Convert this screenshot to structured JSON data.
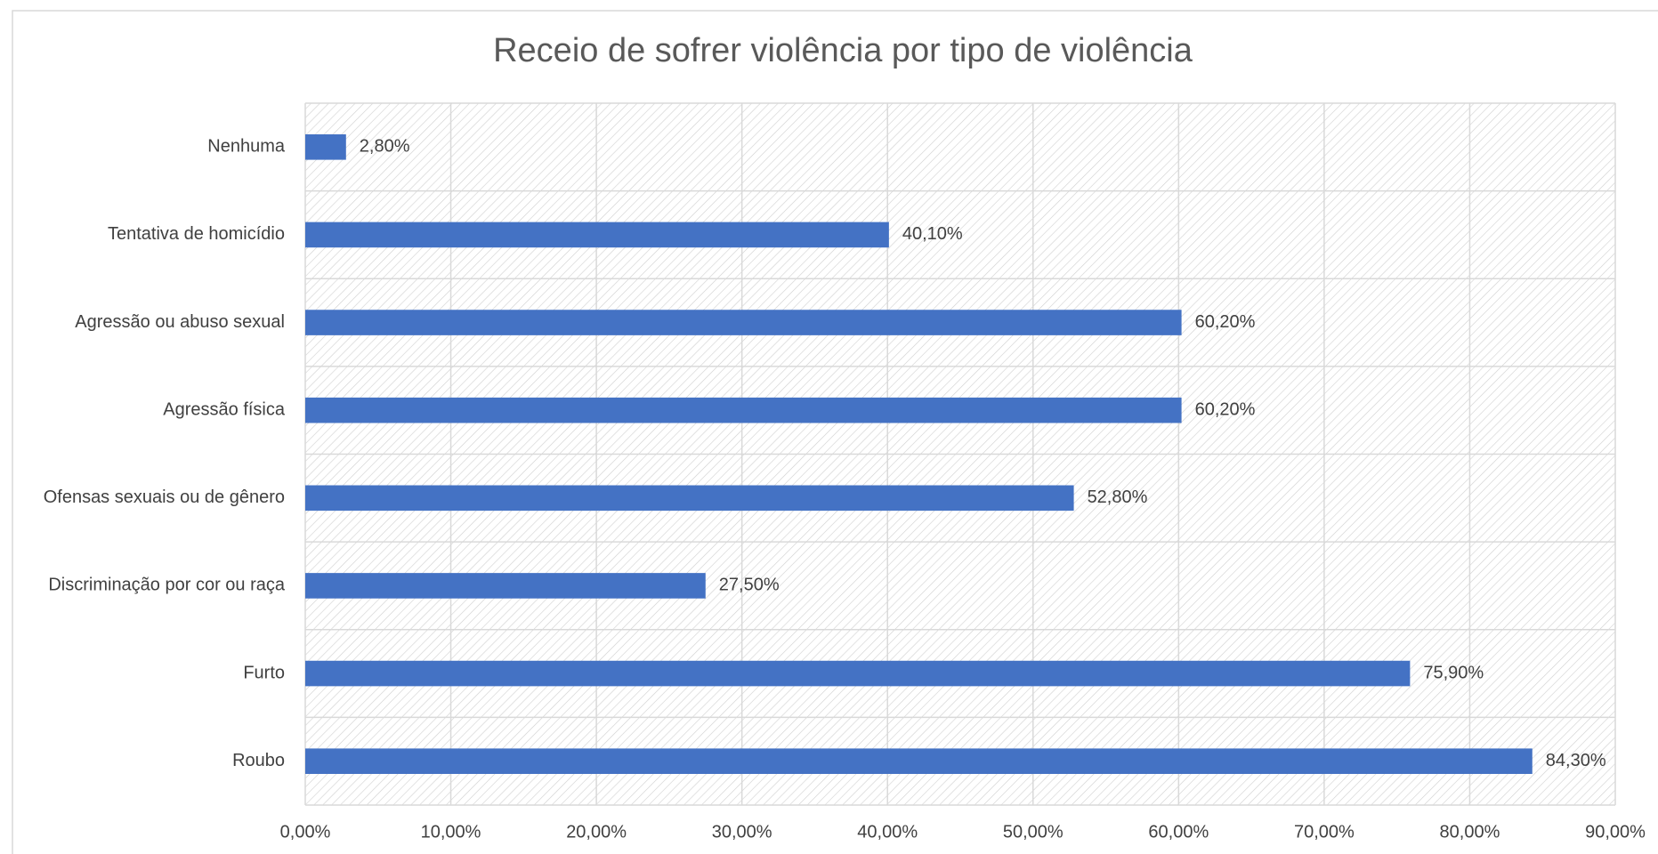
{
  "chart_data": {
    "type": "bar",
    "orientation": "horizontal",
    "title": "Receio de sofrer violência por tipo de violência",
    "categories": [
      "Nenhuma",
      "Tentativa de homicídio",
      "Agressão ou abuso sexual",
      "Agressão física",
      "Ofensas sexuais ou de gênero",
      "Discriminação por cor ou raça",
      "Furto",
      "Roubo"
    ],
    "values": [
      2.8,
      40.1,
      60.2,
      60.2,
      52.8,
      27.5,
      75.9,
      84.3
    ],
    "value_labels": [
      "2,80%",
      "40,10%",
      "60,20%",
      "60,20%",
      "52,80%",
      "27,50%",
      "75,90%",
      "84,30%"
    ],
    "color": "#4472c4",
    "xlim": [
      0,
      90
    ],
    "xticks": [
      {
        "value": 0,
        "label": "0,00%"
      },
      {
        "value": 10,
        "label": "10,00%"
      },
      {
        "value": 20,
        "label": "20,00%"
      },
      {
        "value": 30,
        "label": "30,00%"
      },
      {
        "value": 40,
        "label": "40,00%"
      },
      {
        "value": 50,
        "label": "50,00%"
      },
      {
        "value": 60,
        "label": "60,00%"
      },
      {
        "value": 70,
        "label": "70,00%"
      },
      {
        "value": 80,
        "label": "80,00%"
      },
      {
        "value": 90,
        "label": "90,00%"
      }
    ],
    "grid": true
  }
}
